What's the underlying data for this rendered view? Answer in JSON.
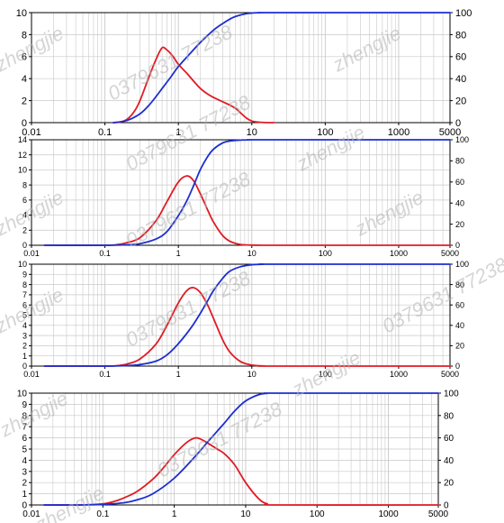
{
  "chart_data": [
    {
      "type": "line",
      "xscale": "log",
      "grid": true,
      "xlim": [
        0.01,
        5000
      ],
      "ylim_left": [
        0,
        10
      ],
      "ylim_right": [
        0,
        100
      ],
      "xticks": [
        "0.01",
        "0.1",
        "1",
        "10",
        "100",
        "1000",
        "5000"
      ],
      "yticks_left": [
        "0",
        "2",
        "4",
        "6",
        "8",
        "10"
      ],
      "yticks_right": [
        "0",
        "20",
        "40",
        "60",
        "80",
        "100"
      ],
      "series": [
        {
          "color": "#e01b24",
          "axis": "left",
          "x": [
            0.13,
            0.16,
            0.2,
            0.25,
            0.3,
            0.4,
            0.5,
            0.6,
            0.7,
            0.85,
            1,
            1.3,
            1.6,
            2,
            2.5,
            3,
            4,
            5,
            6,
            7,
            8.5,
            10,
            12,
            15,
            20
          ],
          "y": [
            0,
            0.05,
            0.3,
            1.0,
            2.0,
            4.2,
            5.8,
            6.8,
            6.6,
            6.0,
            5.3,
            4.5,
            3.8,
            3.1,
            2.6,
            2.3,
            1.9,
            1.6,
            1.3,
            0.9,
            0.4,
            0.15,
            0.05,
            0.01,
            0
          ]
        },
        {
          "color": "#1c2ed0",
          "axis": "right",
          "x": [
            0.13,
            0.2,
            0.3,
            0.4,
            0.5,
            0.6,
            0.8,
            1,
            1.5,
            2,
            3,
            4,
            5,
            6,
            8,
            10,
            12,
            15,
            20,
            5000
          ],
          "y": [
            0,
            2,
            8,
            16,
            24,
            31,
            42,
            51,
            64,
            73,
            84,
            90,
            94,
            96.5,
            98.8,
            99.6,
            99.9,
            100,
            100,
            100
          ]
        }
      ]
    },
    {
      "type": "line",
      "xscale": "log",
      "grid": true,
      "xlim": [
        0.01,
        5000
      ],
      "ylim_left": [
        0,
        14
      ],
      "ylim_right": [
        0,
        100
      ],
      "xticks": [
        "0.01",
        "0.1",
        "1",
        "10",
        "100",
        "1000",
        "5000"
      ],
      "yticks_left": [
        "0",
        "2",
        "4",
        "6",
        "8",
        "10",
        "12",
        "14"
      ],
      "yticks_right": [
        "0",
        "20",
        "40",
        "60",
        "80",
        "100"
      ],
      "series": [
        {
          "color": "#e01b24",
          "axis": "left",
          "x": [
            0.015,
            0.1,
            0.15,
            0.2,
            0.3,
            0.5,
            0.7,
            1,
            1.3,
            1.6,
            2,
            2.5,
            3,
            4,
            5,
            7,
            10,
            15,
            20,
            5000
          ],
          "y": [
            0,
            0,
            0.1,
            0.35,
            1.0,
            3.3,
            5.8,
            8.4,
            9.2,
            8.6,
            6.8,
            4.7,
            3.1,
            1.3,
            0.55,
            0.1,
            0.02,
            0,
            0,
            0
          ]
        },
        {
          "color": "#1c2ed0",
          "axis": "right",
          "x": [
            0.015,
            0.1,
            0.2,
            0.3,
            0.5,
            0.7,
            1,
            1.3,
            1.6,
            2,
            2.5,
            3,
            4,
            5,
            7,
            10,
            15,
            5000
          ],
          "y": [
            0,
            0,
            0.5,
            1.5,
            6,
            13,
            28,
            42,
            56,
            72,
            84,
            91,
            97,
            98.8,
            99.7,
            100,
            100,
            100
          ]
        }
      ]
    },
    {
      "type": "line",
      "xscale": "log",
      "grid": true,
      "xlim": [
        0.01,
        5000
      ],
      "ylim_left": [
        0,
        10
      ],
      "ylim_right": [
        0,
        100
      ],
      "xticks": [
        "0.01",
        "0.1",
        "1",
        "10",
        "100",
        "1000",
        "5000"
      ],
      "yticks_left": [
        "0",
        "1",
        "2",
        "3",
        "4",
        "5",
        "6",
        "7",
        "8",
        "9",
        "10"
      ],
      "yticks_right": [
        "0",
        "20",
        "40",
        "60",
        "80",
        "100"
      ],
      "series": [
        {
          "color": "#e01b24",
          "axis": "left",
          "x": [
            0.015,
            0.1,
            0.15,
            0.2,
            0.3,
            0.5,
            0.7,
            1,
            1.3,
            1.6,
            2,
            2.5,
            3,
            4,
            5,
            7,
            10,
            15,
            20,
            5000
          ],
          "y": [
            0,
            0,
            0.05,
            0.2,
            0.7,
            2.2,
            4.0,
            6.2,
            7.4,
            7.7,
            7.2,
            6.0,
            4.7,
            2.6,
            1.4,
            0.45,
            0.1,
            0.01,
            0,
            0
          ]
        },
        {
          "color": "#1c2ed0",
          "axis": "right",
          "x": [
            0.015,
            0.1,
            0.2,
            0.3,
            0.5,
            0.7,
            1,
            1.5,
            2,
            2.5,
            3,
            4,
            5,
            7,
            10,
            15,
            20,
            5000
          ],
          "y": [
            0,
            0,
            0.5,
            1.5,
            5,
            11,
            22,
            38,
            52,
            64,
            74,
            86,
            93,
            97.5,
            99.5,
            100,
            100,
            100
          ]
        }
      ]
    },
    {
      "type": "line",
      "xscale": "log",
      "grid": true,
      "xlim": [
        0.01,
        5000
      ],
      "ylim_left": [
        0,
        10
      ],
      "ylim_right": [
        0,
        100
      ],
      "xticks": [
        "0.01",
        "0.1",
        "1",
        "10",
        "100",
        "1000",
        "5000"
      ],
      "yticks_left": [
        "0",
        "1",
        "2",
        "3",
        "4",
        "5",
        "6",
        "7",
        "8",
        "9",
        "10"
      ],
      "yticks_right": [
        "0",
        "20",
        "40",
        "60",
        "80",
        "100"
      ],
      "series": [
        {
          "color": "#e01b24",
          "axis": "left",
          "x": [
            0.015,
            0.05,
            0.1,
            0.15,
            0.2,
            0.3,
            0.5,
            0.7,
            1,
            1.5,
            2,
            2.5,
            3,
            4,
            5,
            7,
            10,
            15,
            20,
            30,
            5000
          ],
          "y": [
            0,
            0,
            0.1,
            0.35,
            0.65,
            1.2,
            2.3,
            3.3,
            4.5,
            5.6,
            6.0,
            5.8,
            5.5,
            5.0,
            4.6,
            3.6,
            2.0,
            0.6,
            0.1,
            0,
            0
          ]
        },
        {
          "color": "#1c2ed0",
          "axis": "right",
          "x": [
            0.015,
            0.05,
            0.1,
            0.2,
            0.3,
            0.5,
            1,
            2,
            3,
            5,
            7,
            10,
            15,
            20,
            30,
            5000
          ],
          "y": [
            0,
            0,
            0.5,
            2,
            4.5,
            10,
            24,
            44,
            57,
            73,
            84,
            93,
            98.5,
            99.8,
            100,
            100
          ]
        }
      ]
    }
  ],
  "watermarks": [
    "zhengjie",
    "0379631 77238"
  ],
  "colors": {
    "grid": "#c8c8c8",
    "axis": "#000000"
  }
}
